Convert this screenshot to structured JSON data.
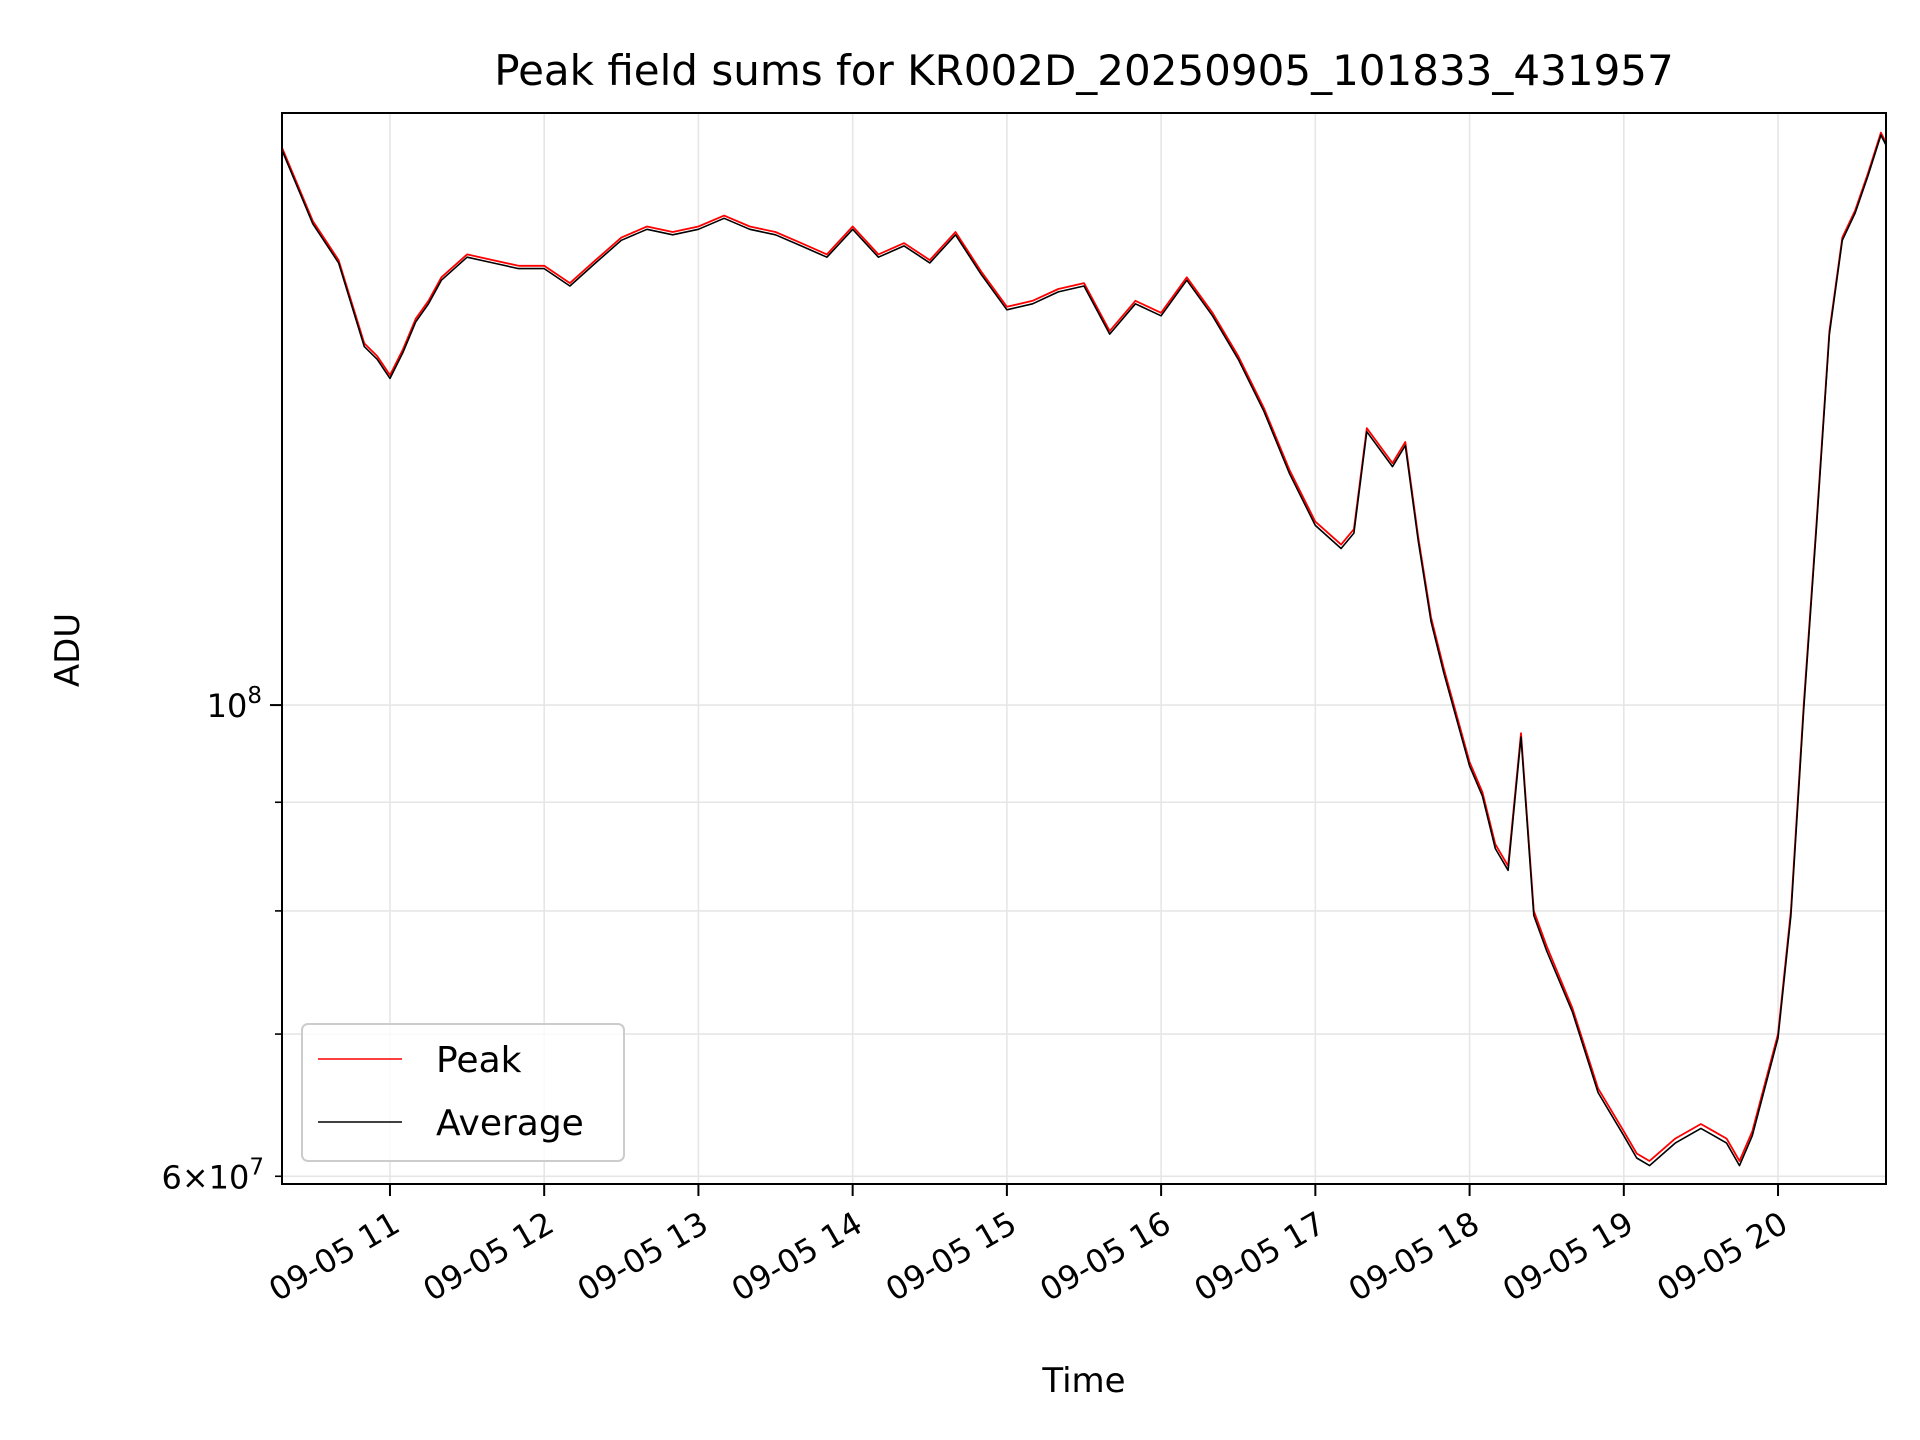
{
  "chart_data": {
    "type": "line",
    "title": "Peak field sums for KR002D_20250905_101833_431957",
    "xlabel": "Time",
    "ylabel": "ADU",
    "yscale": "log",
    "ylim": [
      59500000,
      190000000
    ],
    "xlim": [
      "2025-09-05 10:18",
      "2025-09-05 20:42"
    ],
    "grid": true,
    "legend": "lower-left",
    "x_ticks": [
      {
        "time": "2025-09-05 11:00",
        "label": "09-05 11"
      },
      {
        "time": "2025-09-05 12:00",
        "label": "09-05 12"
      },
      {
        "time": "2025-09-05 13:00",
        "label": "09-05 13"
      },
      {
        "time": "2025-09-05 14:00",
        "label": "09-05 14"
      },
      {
        "time": "2025-09-05 15:00",
        "label": "09-05 15"
      },
      {
        "time": "2025-09-05 16:00",
        "label": "09-05 16"
      },
      {
        "time": "2025-09-05 17:00",
        "label": "09-05 17"
      },
      {
        "time": "2025-09-05 18:00",
        "label": "09-05 18"
      },
      {
        "time": "2025-09-05 19:00",
        "label": "09-05 19"
      },
      {
        "time": "2025-09-05 20:00",
        "label": "09-05 20"
      }
    ],
    "y_major_ticks": [
      {
        "value": 100000000,
        "base": "10",
        "exp": "8"
      }
    ],
    "y_minor_ticks": [
      {
        "value": 60000000,
        "mant": "6",
        "base": "10",
        "exp": "7"
      },
      {
        "value": 70000000
      },
      {
        "value": 80000000
      },
      {
        "value": 90000000
      }
    ],
    "x": [
      "10:18",
      "10:30",
      "10:40",
      "10:50",
      "10:55",
      "11:00",
      "11:05",
      "11:10",
      "11:15",
      "11:20",
      "11:30",
      "11:40",
      "11:50",
      "12:00",
      "12:10",
      "12:20",
      "12:30",
      "12:40",
      "12:50",
      "13:00",
      "13:10",
      "13:20",
      "13:30",
      "13:40",
      "13:50",
      "14:00",
      "14:10",
      "14:20",
      "14:30",
      "14:40",
      "14:50",
      "15:00",
      "15:10",
      "15:20",
      "15:30",
      "15:40",
      "15:50",
      "16:00",
      "16:10",
      "16:20",
      "16:30",
      "16:40",
      "16:50",
      "17:00",
      "17:10",
      "17:15",
      "17:20",
      "17:30",
      "17:35",
      "17:40",
      "17:45",
      "17:50",
      "18:00",
      "18:05",
      "18:10",
      "18:15",
      "18:20",
      "18:25",
      "18:30",
      "18:40",
      "18:50",
      "19:00",
      "19:05",
      "19:10",
      "19:20",
      "19:30",
      "19:35",
      "19:40",
      "19:45",
      "19:50",
      "20:00",
      "20:05",
      "20:10",
      "20:15",
      "20:20",
      "20:25",
      "20:30",
      "20:35",
      "20:40",
      "20:42"
    ],
    "series": [
      {
        "name": "Peak",
        "color": "#ff0000",
        "values": [
          183000000,
          169000000,
          162000000,
          148000000,
          146000000,
          143000000,
          147000000,
          152000000,
          155000000,
          159000000,
          163000000,
          162000000,
          161000000,
          161000000,
          158000000,
          162000000,
          166000000,
          168000000,
          167000000,
          168000000,
          170000000,
          168000000,
          167000000,
          165000000,
          163000000,
          168000000,
          163000000,
          165000000,
          162000000,
          167000000,
          160000000,
          154000000,
          155000000,
          157000000,
          158000000,
          150000000,
          155000000,
          153000000,
          159000000,
          153000000,
          146000000,
          138000000,
          129000000,
          122000000,
          119000000,
          121000000,
          135000000,
          130000000,
          133000000,
          120000000,
          110000000,
          104000000,
          94000000,
          91000000,
          86000000,
          84000000,
          97000000,
          80000000,
          77000000,
          72000000,
          66000000,
          63000000,
          61500000,
          61000000,
          62500000,
          63500000,
          63000000,
          62500000,
          61000000,
          63000000,
          70000000,
          80000000,
          100000000,
          122000000,
          150000000,
          166000000,
          171000000,
          178000000,
          186000000,
          184000000
        ]
      },
      {
        "name": "Average",
        "color": "#000000",
        "values": [
          182500000,
          168500000,
          161500000,
          147500000,
          145500000,
          142500000,
          146500000,
          151500000,
          154500000,
          158500000,
          162500000,
          161500000,
          160500000,
          160500000,
          157500000,
          161500000,
          165500000,
          167500000,
          166500000,
          167500000,
          169500000,
          167500000,
          166500000,
          164500000,
          162500000,
          167500000,
          162500000,
          164500000,
          161500000,
          166500000,
          159500000,
          153500000,
          154500000,
          156500000,
          157500000,
          149500000,
          154500000,
          152500000,
          158500000,
          152500000,
          145500000,
          137500000,
          128500000,
          121500000,
          118500000,
          120500000,
          134500000,
          129500000,
          132500000,
          119500000,
          109500000,
          103500000,
          93600000,
          90600000,
          85600000,
          83600000,
          96600000,
          79600000,
          76600000,
          71700000,
          65700000,
          62700000,
          61200000,
          60700000,
          62200000,
          63200000,
          62700000,
          62200000,
          60700000,
          62700000,
          69700000,
          79600000,
          99500000,
          121500000,
          149500000,
          165500000,
          170500000,
          177500000,
          185500000,
          183500000
        ]
      }
    ]
  }
}
